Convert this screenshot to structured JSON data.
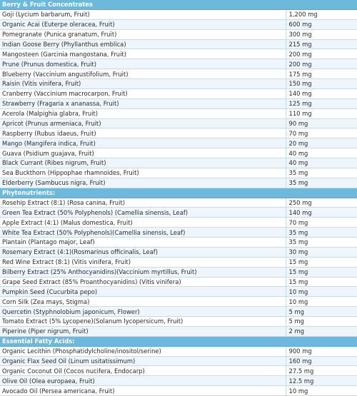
{
  "sections": [
    {
      "title": "Berry & Fruit Concentrates",
      "items": [
        {
          "name": "Goji (Lycium barbarum, Fruit)",
          "amount": "1,200 mg"
        },
        {
          "name": "Organic Acai (Euterpe oleracea, Fruit)",
          "amount": "600 mg"
        },
        {
          "name": "Pomegranate (Punica granatum, Fruit)",
          "amount": "300 mg"
        },
        {
          "name": "Indian Goose Berry (Phyllanthus emblica)",
          "amount": "215 mg"
        },
        {
          "name": "Mangosteen (Garcinia mangostana, Fruit)",
          "amount": "200 mg"
        },
        {
          "name": "Prune (Prunus domestica, Fruit)",
          "amount": "200 mg"
        },
        {
          "name": "Blueberry (Vaccinium angustifolium, Fruit)",
          "amount": "175 mg"
        },
        {
          "name": "Raisin (Vitis vinifera, Fruit)",
          "amount": "150 mg"
        },
        {
          "name": "Cranberry (Vaccinium macrocarpon, Fruit)",
          "amount": "140 mg"
        },
        {
          "name": "Strawberry (Fragaria x ananassa, Fruit)",
          "amount": "125 mg"
        },
        {
          "name": "Acerola (Malpighia glabra, Fruit)",
          "amount": "110 mg"
        },
        {
          "name": "Apricot (Prunus armeniaca, Fruit)",
          "amount": "90 mg"
        },
        {
          "name": "Raspberry (Rubus idaeus, Fruit)",
          "amount": "70 mg"
        },
        {
          "name": "Mango (Mangifera indica, Fruit)",
          "amount": "20 mg"
        },
        {
          "name": "Guava (Psidium guajava, Fruit)",
          "amount": "40 mg"
        },
        {
          "name": "Black Currant (Ribes nigrum, Fruit)",
          "amount": "40 mg"
        },
        {
          "name": "Sea Buckthorn (Hippophae rhamnoides, Fruit)",
          "amount": "35 mg"
        },
        {
          "name": "Elderberry (Sambucus nigra, Fruit)",
          "amount": "35 mg"
        }
      ]
    },
    {
      "title": "Phytonutrients:",
      "items": [
        {
          "name": "Rosehip Extract (8:1) (Rosa canina, Fruit)",
          "amount": "250 mg"
        },
        {
          "name": "Green Tea Extract (50% Polyphenols) (Camellia sinensis, Leaf)",
          "amount": "140 mg"
        },
        {
          "name": "Apple Extract (4:1) (Malus domestica, Fruit)",
          "amount": "70 mg"
        },
        {
          "name": "White Tea Extract (50% Polyphenols)(Camellia sinensis, Leaf)",
          "amount": "35 mg"
        },
        {
          "name": "Plantain (Plantago major, Leaf)",
          "amount": "35 mg"
        },
        {
          "name": "Rosemary Extract (4:1)(Rosmarinus officinalis, Leaf)",
          "amount": "30 mg"
        },
        {
          "name": "Red Wine Extract (8:1) (Vitis vinifera, Fruit)",
          "amount": "15 mg"
        },
        {
          "name": "Bilberry Extract (25% Anthocyanidins)(Vaccinium myrtillus, Fruit)",
          "amount": "15 mg"
        },
        {
          "name": "Grape Seed Extract (85% Proanthocyanidins) (Vitis vinifera)",
          "amount": "15 mg"
        },
        {
          "name": "Pumpkin Seed (Cucurbita pepo)",
          "amount": "10 mg"
        },
        {
          "name": "Corn Silk (Zea mays, Stigma)",
          "amount": "10 mg"
        },
        {
          "name": "Quercetin (Styphnolobium japonicum, Flower)",
          "amount": "5 mg"
        },
        {
          "name": "Tomato Extract (5% Lycopene)(Solanum lycopersicum, Fruit)",
          "amount": "5 mg"
        },
        {
          "name": "Piperine (Piper nigrum, Fruit)",
          "amount": "2 mg"
        }
      ]
    },
    {
      "title": "Essential Fatty Acids:",
      "items": [
        {
          "name": "Organic Lecithin (Phosphatidylcholine/inositol/serine)",
          "amount": "900 mg"
        },
        {
          "name": "Organic Flax Seed Oil (Linum usitatissimum)",
          "amount": "160 mg"
        },
        {
          "name": "Organic Coconut Oil (Cocos nucifera, Endocarp)",
          "amount": "27.5 mg"
        },
        {
          "name": "Olive Oil (Olea europaea, Fruit)",
          "amount": "12.5 mg"
        },
        {
          "name": "Avocado Oil (Persea americana, Fruit)",
          "amount": "10 mg"
        }
      ]
    }
  ],
  "colors": {
    "header_bg": "#6db8dd",
    "header_text": "#ffffff",
    "row_alt_bg": "#eef6fb",
    "rule": "#c8dbe6",
    "text": "#2a2a2a"
  }
}
